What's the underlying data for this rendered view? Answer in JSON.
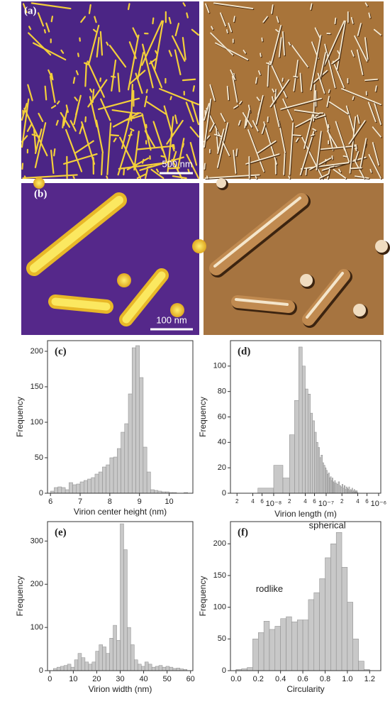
{
  "panels": [
    {
      "label": "(a)",
      "scale_bar": "500 nm"
    },
    {
      "label": "(b)",
      "scale_bar": "100 nm"
    }
  ],
  "chart_data": [
    {
      "type": "histogram",
      "panel": "(c)",
      "x_label": "Virion center height (nm)",
      "y_label": "Frequency",
      "color": "#c8c8c8",
      "bins": [
        6.0,
        6.125,
        6.25,
        6.375,
        6.5,
        6.625,
        6.75,
        6.875,
        7.0,
        7.125,
        7.25,
        7.375,
        7.5,
        7.625,
        7.75,
        7.875,
        8.0,
        8.125,
        8.25,
        8.375,
        8.5,
        8.625,
        8.75,
        8.875,
        9.0,
        9.125,
        9.25,
        9.375,
        9.5,
        9.625,
        9.75,
        9.875,
        10.0,
        10.125,
        10.25,
        10.375,
        10.5,
        10.625,
        10.75
      ],
      "values": [
        3,
        8,
        9,
        8,
        5,
        15,
        12,
        13,
        16,
        18,
        20,
        22,
        27,
        30,
        37,
        40,
        50,
        51,
        63,
        86,
        98,
        140,
        205,
        208,
        163,
        65,
        30,
        5,
        4,
        3,
        2,
        2,
        1,
        1,
        0,
        0,
        1,
        0
      ],
      "xlim": [
        5.9,
        10.8
      ],
      "xticks": [
        6,
        7,
        8,
        9,
        10
      ],
      "ylim": [
        0,
        215
      ],
      "yticks": [
        0,
        50,
        100,
        150,
        200
      ]
    },
    {
      "type": "histogram",
      "panel": "(d)",
      "x_label": "Virion length (m)",
      "y_label": "Frequency",
      "color": "#c8c8c8",
      "xscale": "log",
      "bins": [
        5e-09,
        1e-08,
        1.5e-08,
        2e-08,
        2.5e-08,
        3e-08,
        3.5e-08,
        4e-08,
        4.5e-08,
        5e-08,
        5.5e-08,
        6e-08,
        6.5e-08,
        7e-08,
        7.5e-08,
        8e-08,
        8.5e-08,
        9e-08,
        9.5e-08,
        1e-07,
        1.05e-07,
        1.1e-07,
        1.15e-07,
        1.2e-07,
        1.25e-07,
        1.3e-07,
        1.35e-07,
        1.4e-07,
        1.45e-07,
        1.5e-07,
        1.6e-07,
        1.7e-07,
        1.8e-07,
        1.9e-07,
        2e-07,
        2.1e-07,
        2.2e-07,
        2.3e-07,
        2.4e-07,
        2.5e-07,
        2.6e-07,
        2.7e-07,
        2.8e-07,
        2.9e-07,
        3e-07,
        3.1e-07,
        3.2e-07,
        3.3e-07,
        3.4e-07,
        3.5e-07,
        3.6e-07,
        3.7e-07,
        3.8e-07,
        3.9e-07,
        4e-07
      ],
      "values": [
        4,
        22,
        12,
        46,
        73,
        115,
        100,
        82,
        78,
        63,
        57,
        48,
        40,
        36,
        28,
        30,
        24,
        22,
        20,
        18,
        15,
        16,
        12,
        13,
        10,
        12,
        9,
        8,
        10,
        8,
        7,
        9,
        6,
        5,
        7,
        4,
        6,
        3,
        5,
        4,
        3,
        5,
        2,
        3,
        2,
        4,
        1,
        2,
        3,
        1,
        2,
        1,
        2,
        1
      ],
      "xlim": [
        1.5e-09,
        1.1e-06
      ],
      "xticks": [
        {
          "value": 2e-09,
          "label": "2"
        },
        {
          "value": 4e-09,
          "label": "4"
        },
        {
          "value": 6e-09,
          "label": "6"
        },
        {
          "value": 1e-08,
          "label": "10⁻⁸"
        },
        {
          "value": 2e-08,
          "label": "2"
        },
        {
          "value": 4e-08,
          "label": "4"
        },
        {
          "value": 6e-08,
          "label": "6"
        },
        {
          "value": 1e-07,
          "label": "10⁻⁷"
        },
        {
          "value": 2e-07,
          "label": "2"
        },
        {
          "value": 4e-07,
          "label": "4"
        },
        {
          "value": 6e-07,
          "label": "6"
        },
        {
          "value": 1e-06,
          "label": "10⁻⁶"
        }
      ],
      "ylim": [
        0,
        120
      ],
      "yticks": [
        0,
        20,
        40,
        60,
        80,
        100
      ]
    },
    {
      "type": "histogram",
      "panel": "(e)",
      "x_label": "Virion width (nm)",
      "y_label": "Frequency",
      "color": "#c8c8c8",
      "bins": [
        1.5,
        3,
        4.5,
        6,
        7.5,
        9,
        10.5,
        12,
        13.5,
        15,
        16.5,
        18,
        19.5,
        21,
        22.5,
        24,
        25.5,
        27,
        28.5,
        30,
        31.5,
        33,
        34.5,
        36,
        37.5,
        39,
        40.5,
        42,
        43.5,
        45,
        46.5,
        48,
        49.5,
        51,
        52.5,
        54,
        55.5,
        57,
        58.5
      ],
      "values": [
        5,
        8,
        10,
        12,
        15,
        8,
        25,
        40,
        30,
        20,
        15,
        20,
        45,
        60,
        55,
        40,
        75,
        105,
        70,
        340,
        280,
        100,
        60,
        25,
        15,
        10,
        20,
        15,
        8,
        10,
        12,
        8,
        10,
        8,
        5,
        6,
        4,
        3
      ],
      "xlim": [
        -1,
        61
      ],
      "xticks": [
        0,
        10,
        20,
        30,
        40,
        50,
        60
      ],
      "ylim": [
        0,
        345
      ],
      "yticks": [
        0,
        100,
        200,
        300
      ]
    },
    {
      "type": "histogram",
      "panel": "(f)",
      "x_label": "Circularity",
      "y_label": "Frequency",
      "color": "#c8c8c8",
      "annotations": [
        "rodlike",
        "spherical"
      ],
      "bins": [
        0,
        0.05,
        0.1,
        0.15,
        0.2,
        0.25,
        0.3,
        0.35,
        0.4,
        0.45,
        0.5,
        0.55,
        0.6,
        0.65,
        0.7,
        0.75,
        0.8,
        0.85,
        0.9,
        0.95,
        1.0,
        1.05,
        1.1,
        1.15,
        1.2
      ],
      "values": [
        2,
        3,
        5,
        50,
        60,
        78,
        65,
        70,
        82,
        85,
        77,
        80,
        80,
        112,
        123,
        145,
        178,
        200,
        218,
        163,
        108,
        50,
        15,
        2
      ],
      "xlim": [
        -0.05,
        1.3
      ],
      "xticks": [
        {
          "value": 0,
          "label": "0.0"
        },
        0.2,
        0.4,
        0.6,
        0.8,
        {
          "value": 1,
          "label": "1.0"
        },
        1.2
      ],
      "ylim": [
        0,
        235
      ],
      "yticks": [
        0,
        50,
        100,
        150,
        200
      ]
    }
  ]
}
